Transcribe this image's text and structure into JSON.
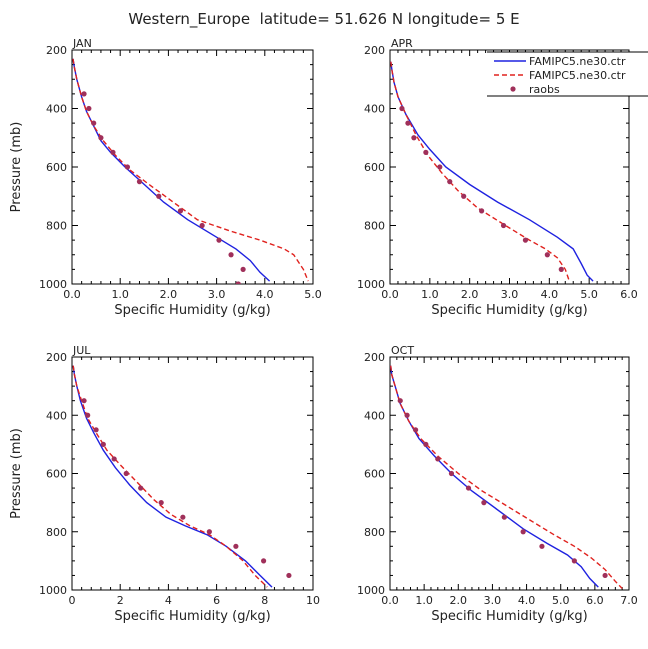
{
  "title": "Western_Europe  latitude= 51.626 N longitude= 5 E",
  "legend": {
    "placement": "top-right",
    "entries": [
      {
        "label": "FAMIPC5.ne30.ctr",
        "style": "solid",
        "color": "#1f22e0"
      },
      {
        "label": "FAMIPC5.ne30.ctr",
        "style": "dashed",
        "color": "#e0221e"
      },
      {
        "label": "raobs",
        "style": "dot",
        "color": "#a0305a"
      }
    ]
  },
  "colors": {
    "model_solid": "#1f22e0",
    "model_dashed": "#e0221e",
    "raobs": "#a0305a"
  },
  "chart_data": [
    {
      "type": "line",
      "panel_label": "JAN",
      "xlabel": "Specific Humidity (g/kg)",
      "ylabel": "Pressure (mb)",
      "xlim": [
        0,
        5
      ],
      "ylim": [
        1000,
        200
      ],
      "xticks": [
        "0.0",
        "1.0",
        "2.0",
        "3.0",
        "4.0",
        "5.0"
      ],
      "xtick_values": [
        0,
        1,
        2,
        3,
        4,
        5
      ],
      "yticks": [
        "200",
        "400",
        "600",
        "800",
        "1000"
      ],
      "ytick_values": [
        200,
        400,
        600,
        800,
        1000
      ],
      "series": [
        {
          "name": "FAMIPC5.ne30.ctr",
          "style": "solid",
          "points": [
            [
              0.02,
              230
            ],
            [
              0.05,
              260
            ],
            [
              0.1,
              300
            ],
            [
              0.2,
              360
            ],
            [
              0.3,
              410
            ],
            [
              0.45,
              460
            ],
            [
              0.6,
              510
            ],
            [
              0.8,
              550
            ],
            [
              1.1,
              600
            ],
            [
              1.5,
              660
            ],
            [
              1.9,
              720
            ],
            [
              2.4,
              780
            ],
            [
              3.0,
              840
            ],
            [
              3.4,
              880
            ],
            [
              3.7,
              920
            ],
            [
              3.9,
              960
            ],
            [
              4.1,
              990
            ]
          ]
        },
        {
          "name": "FAMIPC5.ne30.ctr",
          "style": "dashed",
          "points": [
            [
              0.02,
              230
            ],
            [
              0.05,
              260
            ],
            [
              0.1,
              300
            ],
            [
              0.2,
              360
            ],
            [
              0.3,
              410
            ],
            [
              0.45,
              460
            ],
            [
              0.65,
              510
            ],
            [
              0.9,
              560
            ],
            [
              1.2,
              610
            ],
            [
              1.6,
              660
            ],
            [
              2.1,
              720
            ],
            [
              2.6,
              780
            ],
            [
              3.3,
              820
            ],
            [
              3.9,
              850
            ],
            [
              4.4,
              880
            ],
            [
              4.6,
              900
            ],
            [
              4.8,
              950
            ],
            [
              4.9,
              990
            ]
          ]
        },
        {
          "name": "raobs",
          "style": "dot",
          "points": [
            [
              0.25,
              350
            ],
            [
              0.35,
              400
            ],
            [
              0.45,
              450
            ],
            [
              0.6,
              500
            ],
            [
              0.85,
              550
            ],
            [
              1.15,
              600
            ],
            [
              1.4,
              650
            ],
            [
              1.8,
              700
            ],
            [
              2.25,
              750
            ],
            [
              2.7,
              800
            ],
            [
              3.05,
              850
            ],
            [
              3.3,
              900
            ],
            [
              3.55,
              950
            ],
            [
              3.45,
              1000
            ]
          ]
        }
      ]
    },
    {
      "type": "line",
      "panel_label": "APR",
      "xlabel": "Specific Humidity (g/kg)",
      "ylabel": "",
      "xlim": [
        0,
        6
      ],
      "ylim": [
        1000,
        200
      ],
      "xticks": [
        "0.0",
        "1.0",
        "2.0",
        "3.0",
        "4.0",
        "5.0",
        "6.0"
      ],
      "xtick_values": [
        0,
        1,
        2,
        3,
        4,
        5,
        6
      ],
      "yticks": [
        "200",
        "400",
        "600",
        "800",
        "1000"
      ],
      "ytick_values": [
        200,
        400,
        600,
        800,
        1000
      ],
      "series": [
        {
          "name": "FAMIPC5.ne30.ctr",
          "style": "solid",
          "points": [
            [
              0.02,
              240
            ],
            [
              0.05,
              270
            ],
            [
              0.1,
              310
            ],
            [
              0.2,
              360
            ],
            [
              0.4,
              420
            ],
            [
              0.7,
              490
            ],
            [
              1.0,
              540
            ],
            [
              1.4,
              600
            ],
            [
              2.0,
              660
            ],
            [
              2.7,
              720
            ],
            [
              3.5,
              780
            ],
            [
              4.2,
              840
            ],
            [
              4.6,
              880
            ],
            [
              4.8,
              930
            ],
            [
              4.95,
              970
            ],
            [
              5.1,
              990
            ]
          ]
        },
        {
          "name": "FAMIPC5.ne30.ctr",
          "style": "dashed",
          "points": [
            [
              0.02,
              240
            ],
            [
              0.05,
              270
            ],
            [
              0.1,
              310
            ],
            [
              0.2,
              360
            ],
            [
              0.4,
              420
            ],
            [
              0.65,
              490
            ],
            [
              0.95,
              560
            ],
            [
              1.3,
              620
            ],
            [
              1.7,
              680
            ],
            [
              2.2,
              740
            ],
            [
              2.9,
              800
            ],
            [
              3.5,
              850
            ],
            [
              3.9,
              880
            ],
            [
              4.2,
              910
            ],
            [
              4.4,
              950
            ],
            [
              4.5,
              990
            ]
          ]
        },
        {
          "name": "raobs",
          "style": "dot",
          "points": [
            [
              0.3,
              400
            ],
            [
              0.45,
              450
            ],
            [
              0.6,
              500
            ],
            [
              0.9,
              550
            ],
            [
              1.25,
              600
            ],
            [
              1.5,
              650
            ],
            [
              1.85,
              700
            ],
            [
              2.3,
              750
            ],
            [
              2.85,
              800
            ],
            [
              3.4,
              850
            ],
            [
              3.95,
              900
            ],
            [
              4.3,
              950
            ]
          ]
        }
      ]
    },
    {
      "type": "line",
      "panel_label": "JUL",
      "xlabel": "Specific Humidity (g/kg)",
      "ylabel": "Pressure (mb)",
      "xlim": [
        0,
        10
      ],
      "ylim": [
        1000,
        200
      ],
      "xticks": [
        "0",
        "2",
        "4",
        "6",
        "8",
        "10"
      ],
      "xtick_values": [
        0,
        2,
        4,
        6,
        8,
        10
      ],
      "yticks": [
        "200",
        "400",
        "600",
        "800",
        "1000"
      ],
      "ytick_values": [
        200,
        400,
        600,
        800,
        1000
      ],
      "series": [
        {
          "name": "FAMIPC5.ne30.ctr",
          "style": "solid",
          "points": [
            [
              0.05,
              230
            ],
            [
              0.1,
              260
            ],
            [
              0.2,
              300
            ],
            [
              0.35,
              350
            ],
            [
              0.6,
              410
            ],
            [
              0.9,
              460
            ],
            [
              1.3,
              520
            ],
            [
              1.8,
              580
            ],
            [
              2.4,
              640
            ],
            [
              3.1,
              700
            ],
            [
              3.9,
              750
            ],
            [
              4.7,
              780
            ],
            [
              5.6,
              810
            ],
            [
              6.4,
              850
            ],
            [
              7.2,
              900
            ],
            [
              7.8,
              950
            ],
            [
              8.3,
              990
            ]
          ]
        },
        {
          "name": "FAMIPC5.ne30.ctr",
          "style": "dashed",
          "points": [
            [
              0.05,
              230
            ],
            [
              0.1,
              260
            ],
            [
              0.2,
              300
            ],
            [
              0.4,
              350
            ],
            [
              0.65,
              410
            ],
            [
              1.0,
              460
            ],
            [
              1.45,
              520
            ],
            [
              2.0,
              570
            ],
            [
              2.7,
              630
            ],
            [
              3.4,
              690
            ],
            [
              4.1,
              740
            ],
            [
              4.9,
              780
            ],
            [
              5.7,
              810
            ],
            [
              6.4,
              850
            ],
            [
              7.1,
              900
            ],
            [
              7.6,
              950
            ],
            [
              8.1,
              990
            ]
          ]
        },
        {
          "name": "raobs",
          "style": "dot",
          "points": [
            [
              0.5,
              350
            ],
            [
              0.65,
              400
            ],
            [
              1.0,
              450
            ],
            [
              1.3,
              500
            ],
            [
              1.75,
              550
            ],
            [
              2.25,
              600
            ],
            [
              2.85,
              650
            ],
            [
              3.7,
              700
            ],
            [
              4.6,
              750
            ],
            [
              5.7,
              800
            ],
            [
              6.8,
              850
            ],
            [
              7.95,
              900
            ],
            [
              9.0,
              950
            ]
          ]
        }
      ]
    },
    {
      "type": "line",
      "panel_label": "OCT",
      "xlabel": "Specific Humidity (g/kg)",
      "ylabel": "",
      "xlim": [
        0,
        7
      ],
      "ylim": [
        1000,
        200
      ],
      "xticks": [
        "0.0",
        "1.0",
        "2.0",
        "3.0",
        "4.0",
        "5.0",
        "6.0",
        "7.0"
      ],
      "xtick_values": [
        0,
        1,
        2,
        3,
        4,
        5,
        6,
        7
      ],
      "yticks": [
        "200",
        "400",
        "600",
        "800",
        "1000"
      ],
      "ytick_values": [
        200,
        400,
        600,
        800,
        1000
      ],
      "series": [
        {
          "name": "FAMIPC5.ne30.ctr",
          "style": "solid",
          "points": [
            [
              0.02,
              230
            ],
            [
              0.05,
              260
            ],
            [
              0.15,
              300
            ],
            [
              0.3,
              360
            ],
            [
              0.55,
              420
            ],
            [
              0.85,
              480
            ],
            [
              1.3,
              540
            ],
            [
              1.8,
              600
            ],
            [
              2.4,
              660
            ],
            [
              3.1,
              720
            ],
            [
              3.9,
              790
            ],
            [
              4.6,
              840
            ],
            [
              5.2,
              880
            ],
            [
              5.6,
              920
            ],
            [
              5.85,
              960
            ],
            [
              6.1,
              990
            ]
          ]
        },
        {
          "name": "FAMIPC5.ne30.ctr",
          "style": "dashed",
          "points": [
            [
              0.02,
              230
            ],
            [
              0.05,
              260
            ],
            [
              0.15,
              300
            ],
            [
              0.3,
              360
            ],
            [
              0.55,
              420
            ],
            [
              0.9,
              480
            ],
            [
              1.4,
              540
            ],
            [
              2.0,
              600
            ],
            [
              2.7,
              660
            ],
            [
              3.4,
              710
            ],
            [
              4.1,
              760
            ],
            [
              4.8,
              810
            ],
            [
              5.4,
              850
            ],
            [
              5.9,
              890
            ],
            [
              6.3,
              930
            ],
            [
              6.6,
              970
            ],
            [
              6.8,
              995
            ]
          ]
        },
        {
          "name": "raobs",
          "style": "dot",
          "points": [
            [
              0.3,
              350
            ],
            [
              0.5,
              400
            ],
            [
              0.75,
              450
            ],
            [
              1.05,
              500
            ],
            [
              1.4,
              550
            ],
            [
              1.8,
              600
            ],
            [
              2.3,
              650
            ],
            [
              2.75,
              700
            ],
            [
              3.35,
              750
            ],
            [
              3.9,
              800
            ],
            [
              4.45,
              850
            ],
            [
              5.4,
              900
            ],
            [
              6.3,
              950
            ]
          ]
        }
      ]
    }
  ]
}
